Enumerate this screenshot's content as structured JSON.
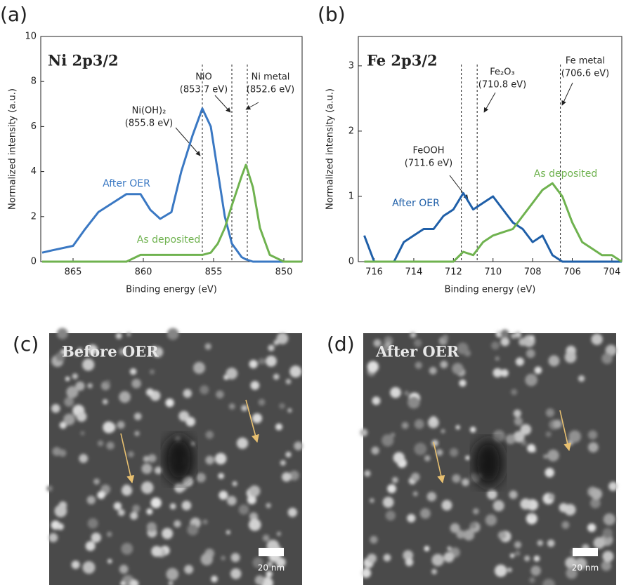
{
  "chart_data": [
    {
      "type": "line",
      "panel_label": "(a)",
      "title": "Ni 2p3/2",
      "x_label": "Binding energy (eV)",
      "y_label": "Normalized intensity (a.u.)",
      "xlim": [
        867.3,
        848.7
      ],
      "xticks": [
        865,
        860,
        855,
        850
      ],
      "ylim": [
        0,
        10
      ],
      "yticks": [
        0,
        2,
        4,
        6,
        8,
        10
      ],
      "x": [
        867.2,
        866.5,
        865,
        864.2,
        863.2,
        862.2,
        861.2,
        860.2,
        859.5,
        858.8,
        858,
        857.3,
        856.5,
        855.8,
        855.2,
        854.7,
        854.2,
        853.7,
        853,
        852.7,
        852.2,
        851.7,
        851,
        850,
        848.7
      ],
      "series": [
        {
          "name": "After OER",
          "color": "#3a78c3",
          "values": [
            0.4,
            0.5,
            0.7,
            1.4,
            2.2,
            2.6,
            3.0,
            3.0,
            2.3,
            1.9,
            2.2,
            4.0,
            5.6,
            6.8,
            6.0,
            4.0,
            2.0,
            0.8,
            0.2,
            0.1,
            0,
            0,
            0,
            0,
            0
          ]
        },
        {
          "name": "As deposited",
          "color": "#6fb24f",
          "values": [
            0,
            0,
            0,
            0,
            0,
            0,
            0,
            0.3,
            0.3,
            0.3,
            0.3,
            0.3,
            0.3,
            0.3,
            0.4,
            0.8,
            1.5,
            2.5,
            3.8,
            4.3,
            3.3,
            1.5,
            0.3,
            0,
            0
          ]
        }
      ],
      "reference_lines": [
        {
          "value": 855.8,
          "label": "Ni(OH)₂",
          "sublabel": "(855.8 eV)"
        },
        {
          "value": 853.7,
          "label": "NiO",
          "sublabel": "(853.7 eV)"
        },
        {
          "value": 852.6,
          "label": "Ni metal",
          "sublabel": "(852.6 eV)"
        }
      ]
    },
    {
      "type": "line",
      "panel_label": "(b)",
      "title": "Fe 2p3/2",
      "x_label": "Binding energy (eV)",
      "y_label": "Normalized intensity (a.u.)",
      "xlim": [
        716.8,
        703.5
      ],
      "xticks": [
        716,
        714,
        712,
        710,
        708,
        706,
        704
      ],
      "ylim": [
        0,
        3.45
      ],
      "yticks": [
        0,
        1,
        2,
        3
      ],
      "x": [
        716.5,
        716,
        715,
        714.5,
        714,
        713.5,
        713,
        712.5,
        712,
        711.5,
        711,
        710.5,
        710,
        709.5,
        709,
        708.5,
        708,
        707.5,
        707,
        706.5,
        706,
        705.5,
        705,
        704.5,
        704,
        703.5
      ],
      "series": [
        {
          "name": "After OER",
          "color": "#1f5fa8",
          "values": [
            0.4,
            0,
            0,
            0.3,
            0.4,
            0.5,
            0.5,
            0.7,
            0.8,
            1.05,
            0.8,
            0.9,
            1.0,
            0.8,
            0.6,
            0.5,
            0.3,
            0.4,
            0.1,
            0,
            0,
            0,
            0,
            0,
            0,
            0
          ]
        },
        {
          "name": "As deposited",
          "color": "#6fb24f",
          "values": [
            0,
            0,
            0,
            0,
            0,
            0,
            0,
            0,
            0,
            0.15,
            0.1,
            0.3,
            0.4,
            0.45,
            0.5,
            0.7,
            0.9,
            1.1,
            1.2,
            1.0,
            0.6,
            0.3,
            0.2,
            0.1,
            0.1,
            0
          ]
        }
      ],
      "reference_lines": [
        {
          "value": 711.6,
          "label": "FeOOH",
          "sublabel": "(711.6 eV)"
        },
        {
          "value": 710.8,
          "label": "Fe₂O₃",
          "sublabel": "(710.8 eV)"
        },
        {
          "value": 706.6,
          "label": "Fe metal",
          "sublabel": "(706.6 eV)"
        }
      ]
    }
  ],
  "images": [
    {
      "panel_label": "(c)",
      "label": "Before OER",
      "scale_bar": "20 nm"
    },
    {
      "panel_label": "(d)",
      "label": "After OER",
      "scale_bar": "20 nm"
    }
  ]
}
